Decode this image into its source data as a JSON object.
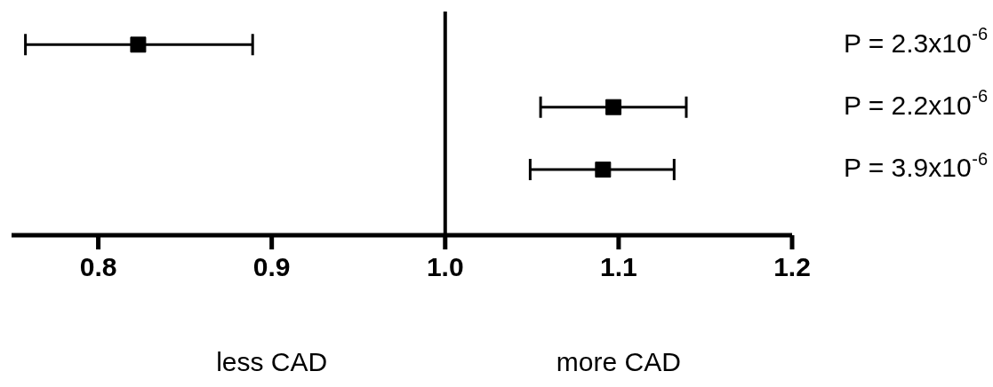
{
  "chart_data": {
    "type": "scatter",
    "orientation": "horizontal",
    "categories": [
      null,
      null,
      null
    ],
    "values": [
      0.823,
      1.097,
      1.091
    ],
    "errors": [
      [
        0.758,
        0.889
      ],
      [
        1.055,
        1.139
      ],
      [
        1.049,
        1.132
      ]
    ],
    "value_labels": [
      "P = 2.3x10$^{-6}$",
      "P = 2.2x10$^{-6}$",
      "P = 3.9x10$^{-6}$"
    ],
    "color": "#000000",
    "marker": "square",
    "xlim": [
      0.75,
      1.2
    ],
    "xticks": [
      {
        "value": 0.8,
        "label": "0.8"
      },
      {
        "value": 0.9,
        "label": "0.9"
      },
      {
        "value": 1.0,
        "label": "1.0"
      },
      {
        "value": 1.1,
        "label": "1.1"
      },
      {
        "value": 1.2,
        "label": "1.2"
      }
    ],
    "ref_lines": [
      {
        "axis": "x",
        "value": 1.0,
        "color": "#000000"
      }
    ],
    "annotations": [
      "less CAD",
      "more CAD"
    ],
    "grid": false,
    "legend": false
  }
}
